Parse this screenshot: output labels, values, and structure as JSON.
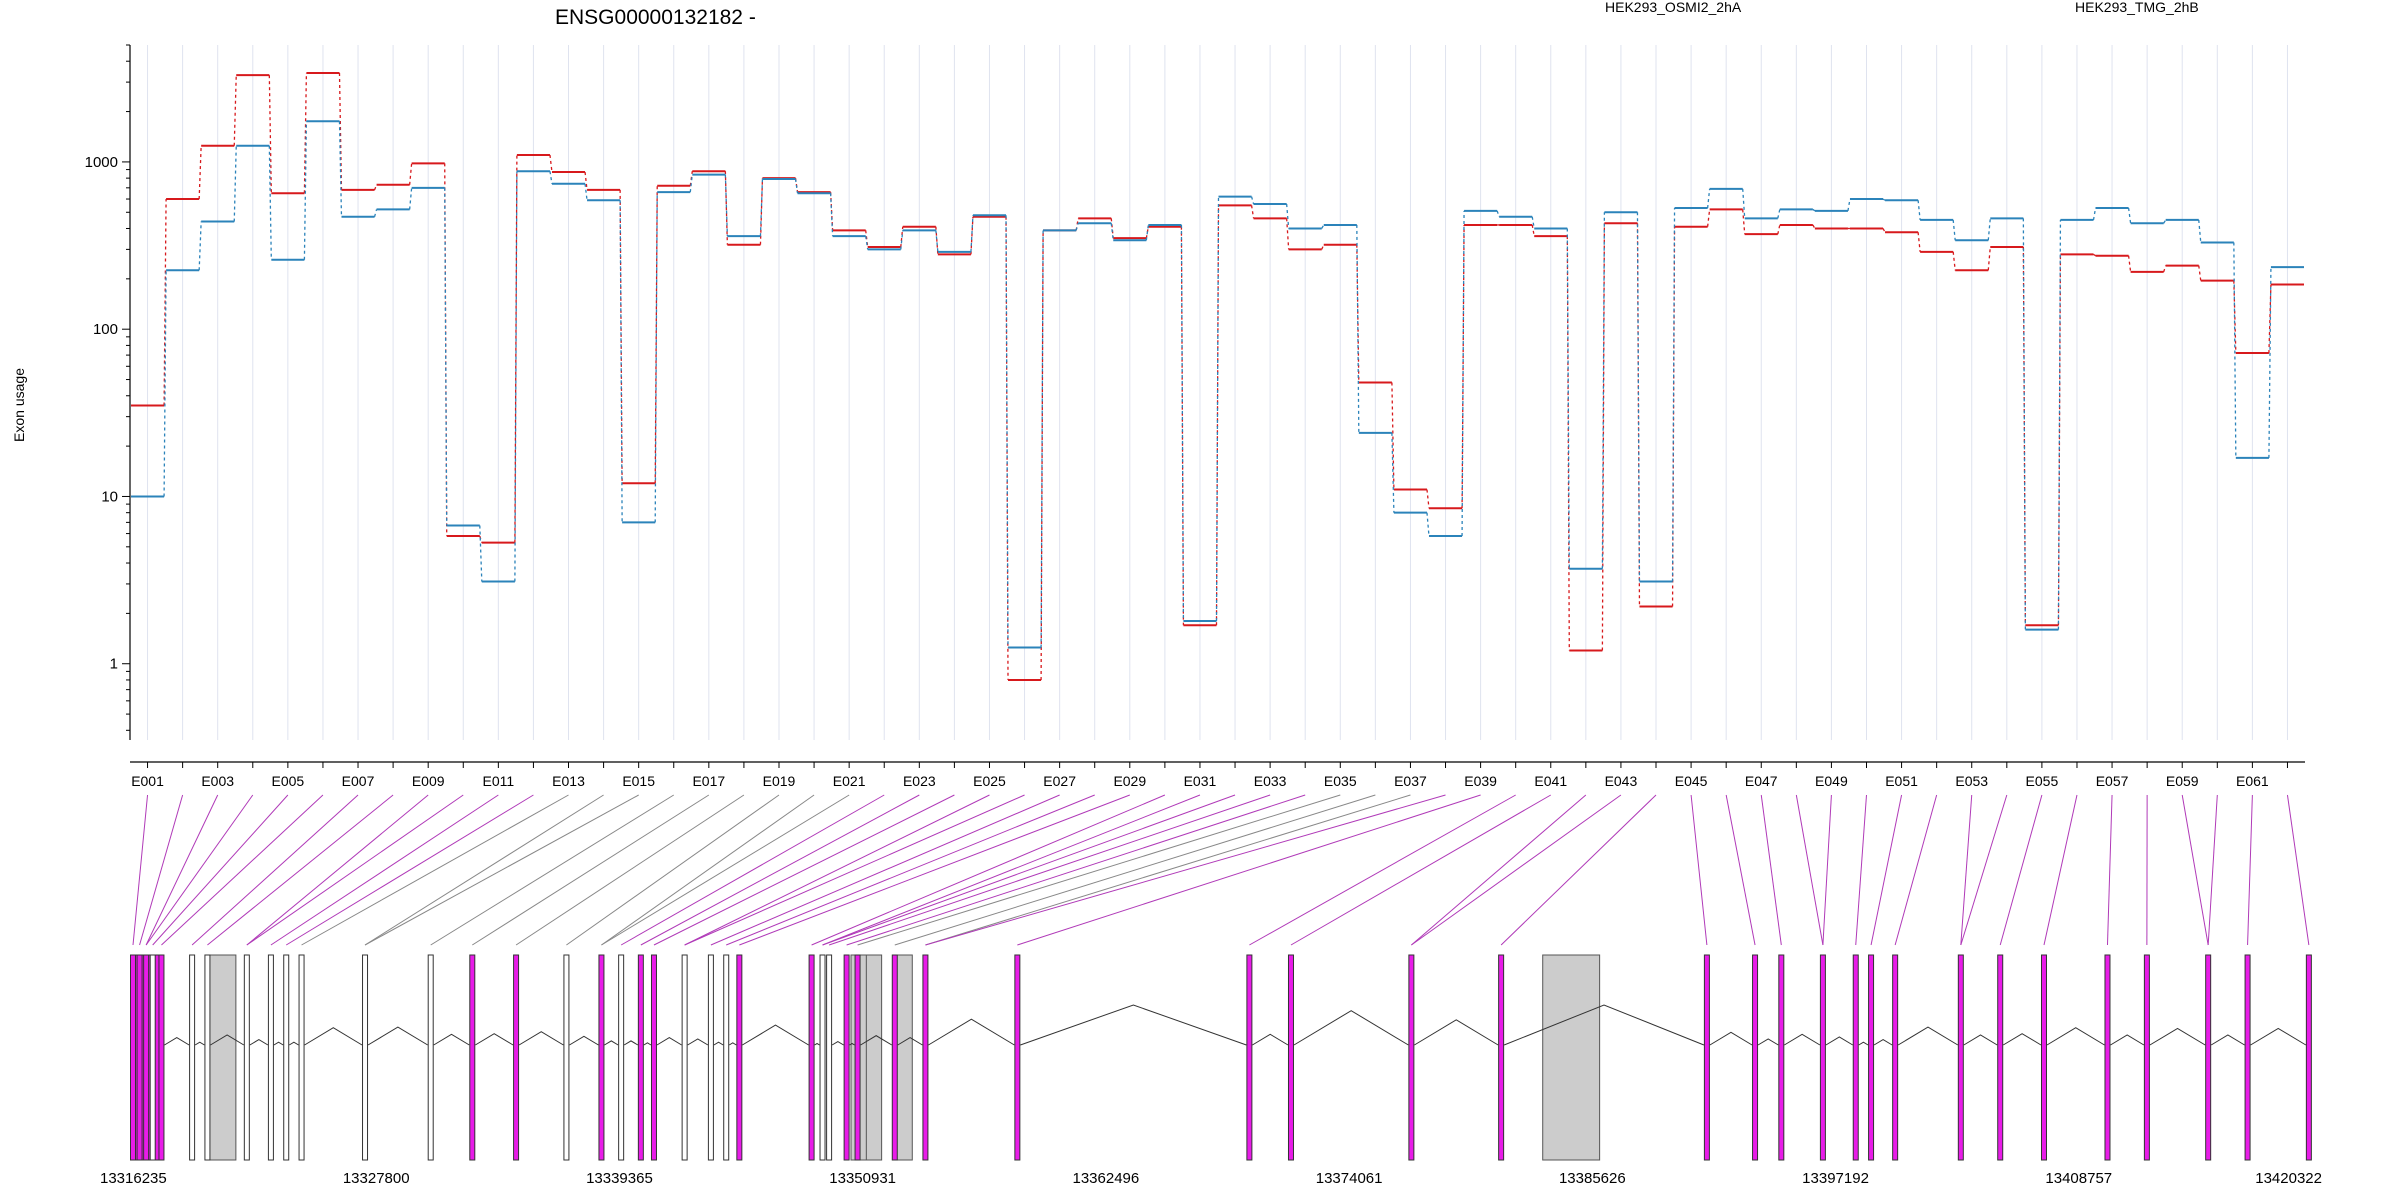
{
  "title": "ENSG00000132182 -",
  "ylabel": "Exon usage",
  "colors": {
    "seriesA": "#d7191c",
    "seriesB": "#2b83ba",
    "exon": "#e81ce8",
    "exon_alt": "#cccccc",
    "connector_exon": "#b03ab8",
    "connector_alt": "#888888"
  },
  "chart_data": {
    "type": "line",
    "yscale": "log",
    "ylim": [
      0.35,
      5000
    ],
    "yticks": [
      1,
      10,
      100,
      1000
    ],
    "xlabels": [
      "E001",
      "E003",
      "E005",
      "E007",
      "E009",
      "E011",
      "E013",
      "E015",
      "E017",
      "E019",
      "E021",
      "E023",
      "E025",
      "E027",
      "E029",
      "E031",
      "E033",
      "E035",
      "E037",
      "E039",
      "E041",
      "E043",
      "E045",
      "E047",
      "E049",
      "E051",
      "E053",
      "E055",
      "E057",
      "E059",
      "E061"
    ],
    "exons": [
      "E001",
      "E002",
      "E003",
      "E004",
      "E005",
      "E006",
      "E007",
      "E008",
      "E009",
      "E010",
      "E011",
      "E012",
      "E013",
      "E014",
      "E015",
      "E016",
      "E017",
      "E018",
      "E019",
      "E020",
      "E021",
      "E022",
      "E023",
      "E024",
      "E025",
      "E026",
      "E027",
      "E028",
      "E029",
      "E030",
      "E031",
      "E032",
      "E033",
      "E034",
      "E035",
      "E036",
      "E037",
      "E038",
      "E039",
      "E040",
      "E041",
      "E042",
      "E043",
      "E044",
      "E045",
      "E046",
      "E047",
      "E048",
      "E049",
      "E050",
      "E051",
      "E052",
      "E053",
      "E054",
      "E055",
      "E056",
      "E057",
      "E058",
      "E059",
      "E060",
      "E061",
      "E062"
    ],
    "series": [
      {
        "name": "HEK293_OSMI2_2hA",
        "values": [
          35,
          600,
          1250,
          3300,
          650,
          3400,
          680,
          730,
          980,
          5.8,
          5.3,
          1100,
          870,
          680,
          12,
          720,
          880,
          320,
          800,
          660,
          390,
          310,
          410,
          280,
          470,
          0.8,
          390,
          460,
          350,
          410,
          1.7,
          550,
          460,
          300,
          320,
          48,
          11,
          8.5,
          420,
          420,
          360,
          1.2,
          430,
          2.2,
          410,
          520,
          370,
          420,
          400,
          400,
          380,
          290,
          225,
          310,
          1.7,
          280,
          275,
          220,
          240,
          195,
          72,
          185
        ]
      },
      {
        "name": "HEK293_TMG_2hB",
        "values": [
          10,
          225,
          440,
          1250,
          260,
          1750,
          470,
          520,
          700,
          6.7,
          3.1,
          880,
          740,
          590,
          7,
          660,
          840,
          360,
          790,
          650,
          360,
          300,
          390,
          290,
          480,
          1.25,
          390,
          430,
          340,
          420,
          1.8,
          620,
          560,
          400,
          420,
          24,
          8,
          5.8,
          510,
          470,
          400,
          3.7,
          500,
          3.1,
          530,
          690,
          460,
          520,
          510,
          600,
          590,
          450,
          340,
          460,
          1.6,
          450,
          530,
          430,
          450,
          330,
          17,
          235
        ]
      }
    ],
    "genomic_axis": {
      "ticks": [
        "13316235",
        "13327800",
        "13339365",
        "13350931",
        "13362496",
        "13374061",
        "13385626",
        "13397192",
        "13408757",
        "13420322"
      ]
    }
  }
}
